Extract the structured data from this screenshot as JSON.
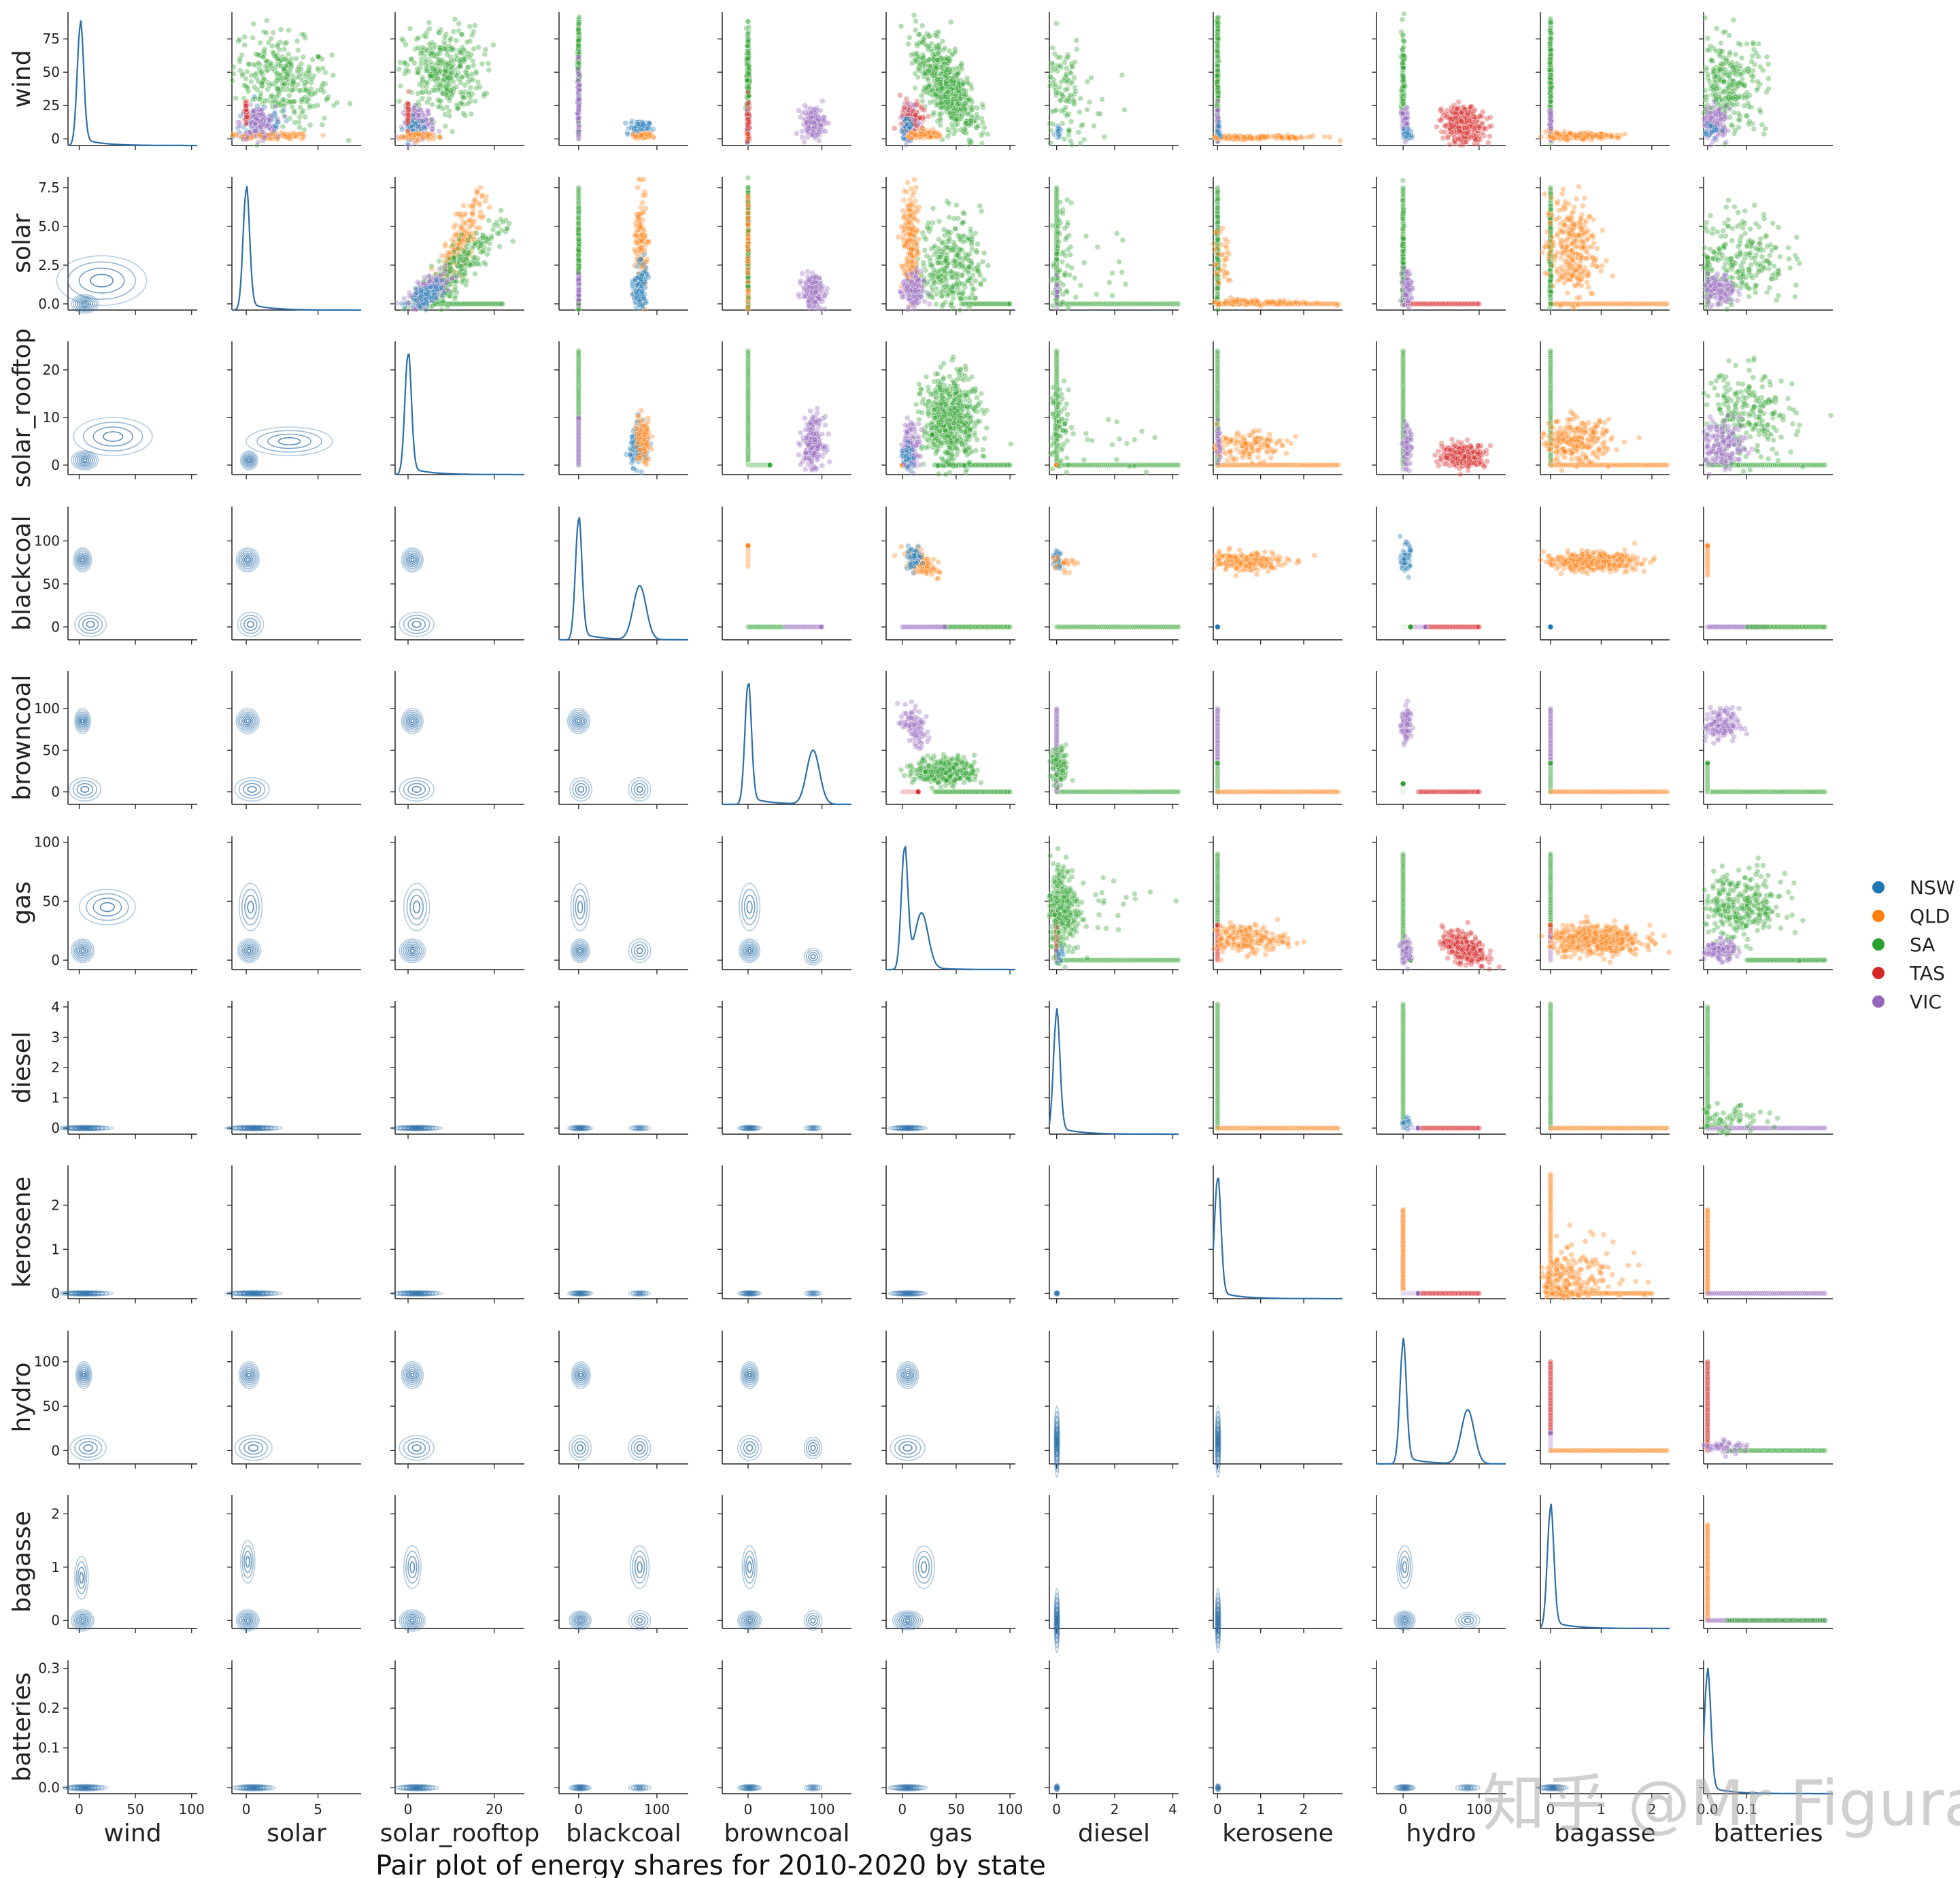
{
  "chart_data": {
    "type": "scatter",
    "subtype": "pairplot",
    "title": "Pair plot of energy shares for 2010-2020 by state",
    "lower_triangle": "kde contours",
    "diagonal": "kde density",
    "upper_triangle": "scatter colored by state",
    "variables": [
      {
        "name": "wind",
        "ylim": [
          -5,
          95
        ],
        "yticks": [
          0,
          25,
          50,
          75
        ],
        "xlim": [
          -10,
          105
        ],
        "xticks": [
          0,
          50,
          100
        ]
      },
      {
        "name": "solar",
        "ylim": [
          -0.4,
          8.2
        ],
        "yticks": [
          0.0,
          2.5,
          5.0,
          7.5
        ],
        "xlim": [
          -1,
          8
        ],
        "xticks": [
          0,
          5
        ]
      },
      {
        "name": "solar_rooftop",
        "ylim": [
          -2,
          26
        ],
        "yticks": [
          0,
          10,
          20
        ],
        "xlim": [
          -3,
          27
        ],
        "xticks": [
          0,
          20
        ]
      },
      {
        "name": "blackcoal",
        "ylim": [
          -15,
          140
        ],
        "yticks": [
          0,
          50,
          100
        ],
        "xlim": [
          -25,
          140
        ],
        "xticks": [
          0,
          100
        ]
      },
      {
        "name": "browncoal",
        "ylim": [
          -15,
          145
        ],
        "yticks": [
          0,
          50,
          100
        ],
        "xlim": [
          -35,
          140
        ],
        "xticks": [
          0,
          100
        ]
      },
      {
        "name": "gas",
        "ylim": [
          -8,
          105
        ],
        "yticks": [
          0,
          50,
          100
        ],
        "xlim": [
          -15,
          105
        ],
        "xticks": [
          0,
          50,
          100
        ]
      },
      {
        "name": "diesel",
        "ylim": [
          -0.2,
          4.2
        ],
        "yticks": [
          0,
          1,
          2,
          3,
          4
        ],
        "xlim": [
          -0.25,
          4.2
        ],
        "xticks": [
          0,
          2,
          4
        ]
      },
      {
        "name": "kerosene",
        "ylim": [
          -0.12,
          2.9
        ],
        "yticks": [
          0,
          1,
          2
        ],
        "xlim": [
          -0.1,
          2.9
        ],
        "xticks": [
          0,
          1,
          2
        ]
      },
      {
        "name": "hydro",
        "ylim": [
          -15,
          135
        ],
        "yticks": [
          0,
          50,
          100
        ],
        "xlim": [
          -35,
          135
        ],
        "xticks": [
          0,
          100
        ]
      },
      {
        "name": "bagasse",
        "ylim": [
          -0.15,
          2.35
        ],
        "yticks": [
          0,
          1,
          2
        ],
        "xlim": [
          -0.2,
          2.35
        ],
        "xticks": [
          0,
          1,
          2
        ]
      },
      {
        "name": "batteries",
        "ylim": [
          -0.015,
          0.32
        ],
        "yticks": [
          0.0,
          0.1,
          0.2,
          0.3
        ],
        "xlim": [
          -0.01,
          0.32
        ],
        "xticks": [
          0.0,
          0.1
        ]
      }
    ],
    "x_tick_labels": [
      [
        "0",
        "50",
        "100"
      ],
      [
        "0",
        "5"
      ],
      [
        "0",
        "20"
      ],
      [
        "0",
        "100"
      ],
      [
        "0",
        "100"
      ],
      [
        "0",
        "50",
        "100"
      ],
      [
        "0",
        "2",
        "4"
      ],
      [
        "0",
        "1",
        "2"
      ],
      [
        "0",
        "100"
      ],
      [
        "0",
        "1",
        "2"
      ],
      [
        "0.0",
        "0.1"
      ]
    ],
    "y_tick_labels": [
      [
        "0",
        "25",
        "50",
        "75"
      ],
      [
        "0.0",
        "2.5",
        "5.0",
        "7.5"
      ],
      [
        "0",
        "10",
        "20"
      ],
      [
        "0",
        "50",
        "100"
      ],
      [
        "0",
        "50",
        "100"
      ],
      [
        "0",
        "50",
        "100"
      ],
      [
        "0",
        "1",
        "2",
        "3",
        "4"
      ],
      [
        "0",
        "1",
        "2"
      ],
      [
        "0",
        "50",
        "100"
      ],
      [
        "0",
        "1",
        "2"
      ],
      [
        "0.0",
        "0.1",
        "0.2",
        "0.3"
      ]
    ],
    "legend": {
      "placement": "right",
      "entries": [
        {
          "label": "NSW",
          "color": "#1f77b4"
        },
        {
          "label": "QLD",
          "color": "#ff7f0e"
        },
        {
          "label": "SA",
          "color": "#2ca02c"
        },
        {
          "label": "TAS",
          "color": "#d62728"
        },
        {
          "label": "VIC",
          "color": "#9467bd"
        }
      ]
    },
    "kde_color": "#2c6fa8",
    "diagonal_peaks": [
      {
        "variable": "wind",
        "mode": 1
      },
      {
        "variable": "solar",
        "mode": 0
      },
      {
        "variable": "solar_rooftop",
        "mode": 0
      },
      {
        "variable": "blackcoal",
        "modes": [
          0,
          78
        ]
      },
      {
        "variable": "browncoal",
        "modes": [
          0,
          88
        ]
      },
      {
        "variable": "gas",
        "modes": [
          2,
          18
        ]
      },
      {
        "variable": "diesel",
        "mode": 0
      },
      {
        "variable": "kerosene",
        "mode": 0
      },
      {
        "variable": "hydro",
        "modes": [
          0,
          85
        ]
      },
      {
        "variable": "bagasse",
        "mode": 0
      },
      {
        "variable": "batteries",
        "mode": 0
      }
    ]
  },
  "watermark": "知乎 @Mr Figurant"
}
